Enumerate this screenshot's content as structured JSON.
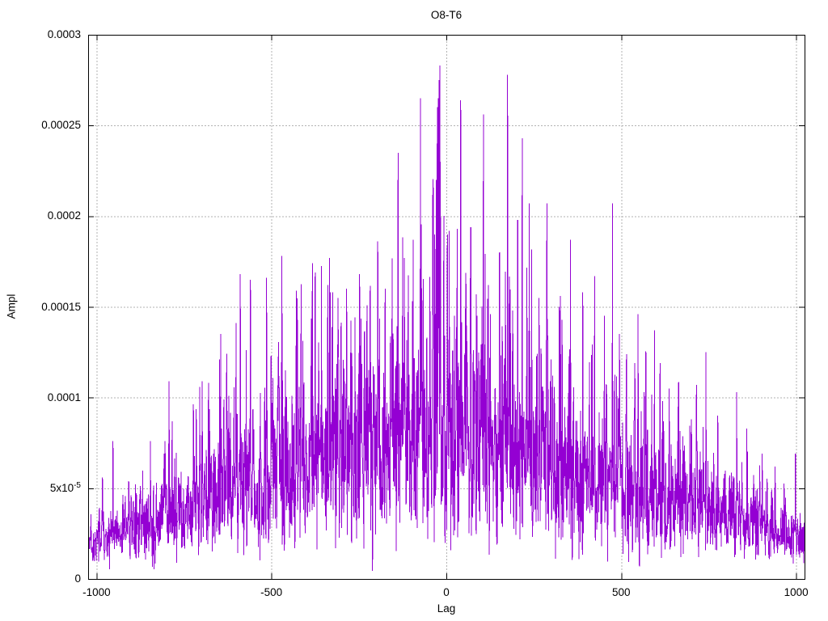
{
  "chart_data": {
    "type": "line",
    "style": "lines",
    "title": "O8-T6",
    "xlabel": "Lag",
    "ylabel": "Ampl",
    "xlim": [
      -1024,
      1024
    ],
    "ylim": [
      0,
      0.0003
    ],
    "grid": "dotted",
    "legend": "none",
    "x_ticks": [
      {
        "v": -1000,
        "label": "-1000"
      },
      {
        "v": -500,
        "label": "-500"
      },
      {
        "v": 0,
        "label": "0"
      },
      {
        "v": 500,
        "label": "500"
      },
      {
        "v": 1000,
        "label": "1000"
      }
    ],
    "y_ticks": [
      {
        "v": 0.0,
        "label": "0",
        "sup": ""
      },
      {
        "v": 5e-05,
        "label": "5x10",
        "sup": "-5"
      },
      {
        "v": 0.0001,
        "label": "0.0001",
        "sup": ""
      },
      {
        "v": 0.00015,
        "label": "0.00015",
        "sup": ""
      },
      {
        "v": 0.0002,
        "label": "0.0002",
        "sup": ""
      },
      {
        "v": 0.00025,
        "label": "0.00025",
        "sup": ""
      },
      {
        "v": 0.0003,
        "label": "0.0003",
        "sup": ""
      }
    ],
    "colors": {
      "line": "#9400d3",
      "grid": "#b2b2b2",
      "border": "#000000",
      "text": "#000000",
      "background": "#ffffff"
    },
    "description": "Noisy correlation-amplitude vs lag; dense spiky envelope rising from ~0.00003 at lag ±1000 to max 0.000283 near lag 0. Values below estimated from pixels.",
    "max_value": 0.000283,
    "peaks": [
      [
        -983,
        5.6e-05
      ],
      [
        -953,
        7.6e-05
      ],
      [
        -907,
        5.2e-05
      ],
      [
        -846,
        7.6e-05
      ],
      [
        -807,
        6.9e-05
      ],
      [
        -793,
        0.000109
      ],
      [
        -784,
        8.7e-05
      ],
      [
        -698,
        0.000109
      ],
      [
        -680,
        0.000108
      ],
      [
        -645,
        0.000135
      ],
      [
        -601,
        0.000141
      ],
      [
        -589,
        0.000168
      ],
      [
        -560,
        0.000165
      ],
      [
        -514,
        0.000166
      ],
      [
        -470,
        0.000178
      ],
      [
        -429,
        0.000159
      ],
      [
        -383,
        0.000174
      ],
      [
        -334,
        0.000177
      ],
      [
        -310,
        0.000155
      ],
      [
        -285,
        0.00016
      ],
      [
        -248,
        0.000168
      ],
      [
        -196,
        0.000186
      ],
      [
        -175,
        0.00016
      ],
      [
        -138,
        0.000235
      ],
      [
        -120,
        0.000177
      ],
      [
        -95,
        0.000187
      ],
      [
        -74,
        0.000265
      ],
      [
        -39,
        0.000208
      ],
      [
        -33,
        0.00019
      ],
      [
        -29,
        0.00022
      ],
      [
        -27,
        0.00024
      ],
      [
        -25,
        0.00026
      ],
      [
        -23,
        0.000265
      ],
      [
        -21,
        0.000275
      ],
      [
        -19,
        0.000283
      ],
      [
        -17,
        0.00023
      ],
      [
        -8,
        0.00015
      ],
      [
        3,
        0.00019
      ],
      [
        8,
        0.000192
      ],
      [
        23,
        0.000145
      ],
      [
        31,
        0.000193
      ],
      [
        41,
        0.000264
      ],
      [
        55,
        0.000155
      ],
      [
        69,
        0.000193
      ],
      [
        88,
        0.000145
      ],
      [
        106,
        0.000256
      ],
      [
        120,
        0.000162
      ],
      [
        152,
        0.00018
      ],
      [
        175,
        0.000278
      ],
      [
        190,
        0.000148
      ],
      [
        217,
        0.000243
      ],
      [
        237,
        0.000207
      ],
      [
        265,
        0.000155
      ],
      [
        288,
        0.000207
      ],
      [
        323,
        0.00015
      ],
      [
        355,
        0.000187
      ],
      [
        390,
        0.000158
      ],
      [
        424,
        0.000167
      ],
      [
        452,
        0.000145
      ],
      [
        475,
        0.000207
      ],
      [
        495,
        0.000135
      ],
      [
        515,
        0.000124
      ],
      [
        548,
        0.000146
      ],
      [
        571,
        0.000124
      ],
      [
        595,
        0.000137
      ],
      [
        611,
        0.000119
      ],
      [
        637,
        0.000105
      ],
      [
        662,
        9.5e-05
      ],
      [
        700,
        8.8e-05
      ],
      [
        742,
        0.000125
      ],
      [
        776,
        9e-05
      ],
      [
        830,
        0.000103
      ],
      [
        859,
        8.3e-05
      ],
      [
        903,
        6.9e-05
      ],
      [
        940,
        6.2e-05
      ],
      [
        998,
        6.9e-05
      ]
    ],
    "synthesis": {
      "seed": 20240613,
      "lag_min": -1023,
      "lag_max": 1023,
      "envelope_peak": 0.000275,
      "envelope_halfwidth": 1150,
      "envelope_exponent": 1.15,
      "rayleigh_sigma": 0.23,
      "rayleigh_cap": 0.78,
      "floor_min": 2e-06,
      "floor_max": 1.8e-05
    }
  }
}
